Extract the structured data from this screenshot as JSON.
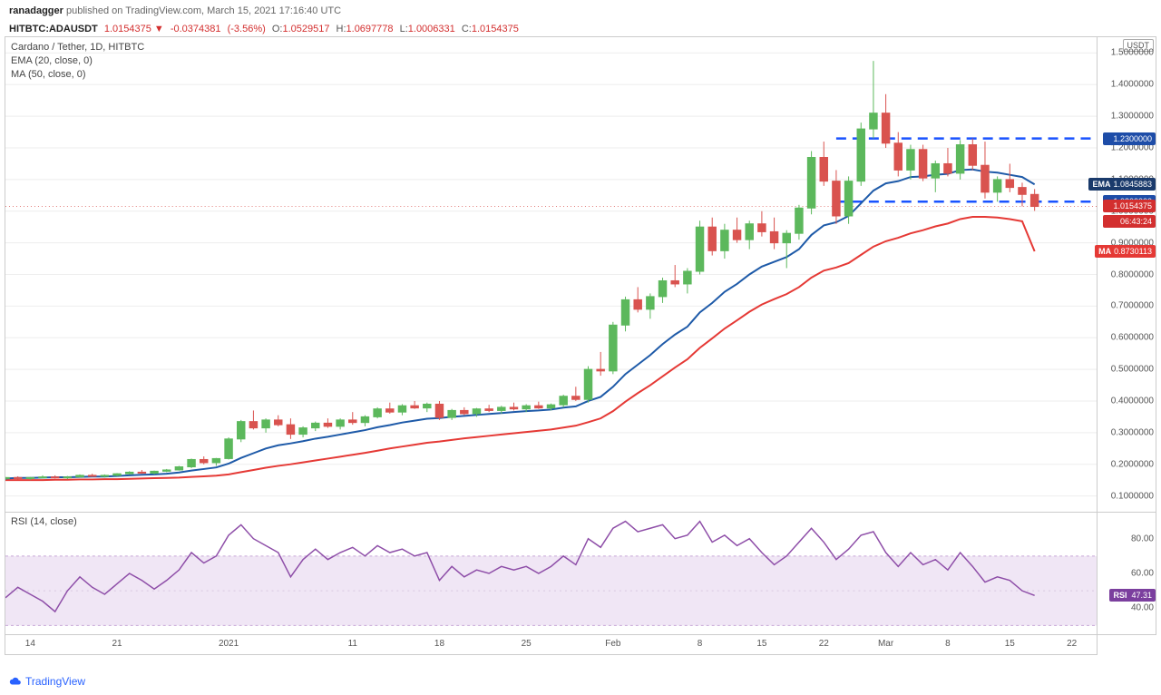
{
  "header": {
    "author": "ranadagger",
    "published_on": "published on TradingView.com,",
    "timestamp": "March 15, 2021 17:16:40 UTC"
  },
  "ticker": {
    "symbol": "HITBTC:ADAUSDT",
    "price": "1.0154375",
    "change": "-0.0374381",
    "change_pct": "(-3.56%)",
    "O_label": "O:",
    "O": "1.0529517",
    "H_label": "H:",
    "H": "1.0697778",
    "L_label": "L:",
    "L": "1.0006331",
    "C_label": "C:",
    "C": "1.0154375"
  },
  "legend": {
    "title": "Cardano / Tether, 1D, HITBTC",
    "ema": "EMA (20, close, 0)",
    "ma": "MA (50, close, 0)"
  },
  "price_chart": {
    "ymin": 0.05,
    "ymax": 1.55,
    "yticks": [
      0.1,
      0.2,
      0.3,
      0.4,
      0.5,
      0.6,
      0.7,
      0.8,
      0.9,
      1.0,
      1.1,
      1.2,
      1.3,
      1.4,
      1.5
    ],
    "ytick_labels": [
      "0.1000000",
      "0.2000000",
      "0.3000000",
      "0.4000000",
      "0.5000000",
      "0.6000000",
      "0.7000000",
      "0.8000000",
      "0.9000000",
      "1.0000000",
      "1.1000000",
      "1.2000000",
      "1.3000000",
      "1.4000000",
      "1.5000000"
    ],
    "currency_label": "USDT",
    "x_domain": [
      0,
      72
    ],
    "xticks": [
      {
        "x": 2,
        "label": "14"
      },
      {
        "x": 9,
        "label": "21"
      },
      {
        "x": 18,
        "label": "2021"
      },
      {
        "x": 28,
        "label": "11"
      },
      {
        "x": 35,
        "label": "18"
      },
      {
        "x": 42,
        "label": "25"
      },
      {
        "x": 49,
        "label": "Feb"
      },
      {
        "x": 56,
        "label": "8"
      },
      {
        "x": 61,
        "label": "15"
      },
      {
        "x": 66,
        "label": "22"
      },
      {
        "x": 71,
        "label": "Mar"
      },
      {
        "x": 76,
        "label": "8"
      },
      {
        "x": 81,
        "label": "15"
      },
      {
        "x": 86,
        "label": "22"
      }
    ],
    "xmax": 88,
    "candles": [
      {
        "o": 0.155,
        "h": 0.16,
        "l": 0.15,
        "c": 0.158
      },
      {
        "o": 0.158,
        "h": 0.162,
        "l": 0.152,
        "c": 0.155
      },
      {
        "o": 0.155,
        "h": 0.16,
        "l": 0.15,
        "c": 0.158
      },
      {
        "o": 0.158,
        "h": 0.165,
        "l": 0.155,
        "c": 0.16
      },
      {
        "o": 0.16,
        "h": 0.165,
        "l": 0.155,
        "c": 0.158
      },
      {
        "o": 0.158,
        "h": 0.163,
        "l": 0.153,
        "c": 0.16
      },
      {
        "o": 0.16,
        "h": 0.168,
        "l": 0.158,
        "c": 0.165
      },
      {
        "o": 0.165,
        "h": 0.17,
        "l": 0.16,
        "c": 0.162
      },
      {
        "o": 0.162,
        "h": 0.168,
        "l": 0.158,
        "c": 0.165
      },
      {
        "o": 0.165,
        "h": 0.172,
        "l": 0.162,
        "c": 0.17
      },
      {
        "o": 0.17,
        "h": 0.178,
        "l": 0.168,
        "c": 0.175
      },
      {
        "o": 0.175,
        "h": 0.182,
        "l": 0.17,
        "c": 0.172
      },
      {
        "o": 0.172,
        "h": 0.18,
        "l": 0.168,
        "c": 0.178
      },
      {
        "o": 0.178,
        "h": 0.185,
        "l": 0.175,
        "c": 0.182
      },
      {
        "o": 0.182,
        "h": 0.195,
        "l": 0.18,
        "c": 0.192
      },
      {
        "o": 0.192,
        "h": 0.218,
        "l": 0.188,
        "c": 0.215
      },
      {
        "o": 0.215,
        "h": 0.225,
        "l": 0.2,
        "c": 0.205
      },
      {
        "o": 0.205,
        "h": 0.22,
        "l": 0.195,
        "c": 0.218
      },
      {
        "o": 0.218,
        "h": 0.285,
        "l": 0.215,
        "c": 0.28
      },
      {
        "o": 0.28,
        "h": 0.34,
        "l": 0.27,
        "c": 0.335
      },
      {
        "o": 0.335,
        "h": 0.37,
        "l": 0.31,
        "c": 0.315
      },
      {
        "o": 0.315,
        "h": 0.345,
        "l": 0.3,
        "c": 0.34
      },
      {
        "o": 0.34,
        "h": 0.355,
        "l": 0.32,
        "c": 0.325
      },
      {
        "o": 0.325,
        "h": 0.345,
        "l": 0.28,
        "c": 0.295
      },
      {
        "o": 0.295,
        "h": 0.32,
        "l": 0.285,
        "c": 0.315
      },
      {
        "o": 0.315,
        "h": 0.335,
        "l": 0.305,
        "c": 0.33
      },
      {
        "o": 0.33,
        "h": 0.345,
        "l": 0.315,
        "c": 0.32
      },
      {
        "o": 0.32,
        "h": 0.345,
        "l": 0.31,
        "c": 0.34
      },
      {
        "o": 0.34,
        "h": 0.365,
        "l": 0.325,
        "c": 0.332
      },
      {
        "o": 0.332,
        "h": 0.355,
        "l": 0.32,
        "c": 0.35
      },
      {
        "o": 0.35,
        "h": 0.38,
        "l": 0.345,
        "c": 0.375
      },
      {
        "o": 0.375,
        "h": 0.395,
        "l": 0.36,
        "c": 0.365
      },
      {
        "o": 0.365,
        "h": 0.39,
        "l": 0.355,
        "c": 0.385
      },
      {
        "o": 0.385,
        "h": 0.4,
        "l": 0.375,
        "c": 0.378
      },
      {
        "o": 0.378,
        "h": 0.395,
        "l": 0.365,
        "c": 0.39
      },
      {
        "o": 0.39,
        "h": 0.4,
        "l": 0.34,
        "c": 0.348
      },
      {
        "o": 0.348,
        "h": 0.375,
        "l": 0.34,
        "c": 0.37
      },
      {
        "o": 0.37,
        "h": 0.38,
        "l": 0.355,
        "c": 0.36
      },
      {
        "o": 0.36,
        "h": 0.378,
        "l": 0.35,
        "c": 0.375
      },
      {
        "o": 0.375,
        "h": 0.388,
        "l": 0.365,
        "c": 0.37
      },
      {
        "o": 0.37,
        "h": 0.385,
        "l": 0.36,
        "c": 0.38
      },
      {
        "o": 0.38,
        "h": 0.395,
        "l": 0.37,
        "c": 0.375
      },
      {
        "o": 0.375,
        "h": 0.39,
        "l": 0.365,
        "c": 0.385
      },
      {
        "o": 0.385,
        "h": 0.398,
        "l": 0.375,
        "c": 0.378
      },
      {
        "o": 0.378,
        "h": 0.392,
        "l": 0.37,
        "c": 0.388
      },
      {
        "o": 0.388,
        "h": 0.42,
        "l": 0.38,
        "c": 0.415
      },
      {
        "o": 0.415,
        "h": 0.445,
        "l": 0.4,
        "c": 0.405
      },
      {
        "o": 0.405,
        "h": 0.51,
        "l": 0.395,
        "c": 0.5
      },
      {
        "o": 0.5,
        "h": 0.555,
        "l": 0.48,
        "c": 0.495
      },
      {
        "o": 0.495,
        "h": 0.65,
        "l": 0.485,
        "c": 0.64
      },
      {
        "o": 0.64,
        "h": 0.73,
        "l": 0.62,
        "c": 0.72
      },
      {
        "o": 0.72,
        "h": 0.76,
        "l": 0.68,
        "c": 0.69
      },
      {
        "o": 0.69,
        "h": 0.74,
        "l": 0.66,
        "c": 0.73
      },
      {
        "o": 0.73,
        "h": 0.79,
        "l": 0.71,
        "c": 0.78
      },
      {
        "o": 0.78,
        "h": 0.83,
        "l": 0.76,
        "c": 0.77
      },
      {
        "o": 0.77,
        "h": 0.82,
        "l": 0.74,
        "c": 0.81
      },
      {
        "o": 0.81,
        "h": 0.97,
        "l": 0.8,
        "c": 0.95
      },
      {
        "o": 0.95,
        "h": 0.98,
        "l": 0.86,
        "c": 0.875
      },
      {
        "o": 0.875,
        "h": 0.96,
        "l": 0.85,
        "c": 0.94
      },
      {
        "o": 0.94,
        "h": 0.98,
        "l": 0.9,
        "c": 0.91
      },
      {
        "o": 0.91,
        "h": 0.97,
        "l": 0.88,
        "c": 0.96
      },
      {
        "o": 0.96,
        "h": 1.0,
        "l": 0.92,
        "c": 0.935
      },
      {
        "o": 0.935,
        "h": 0.98,
        "l": 0.88,
        "c": 0.9
      },
      {
        "o": 0.9,
        "h": 0.94,
        "l": 0.82,
        "c": 0.93
      },
      {
        "o": 0.93,
        "h": 1.02,
        "l": 0.91,
        "c": 1.01
      },
      {
        "o": 1.01,
        "h": 1.19,
        "l": 0.99,
        "c": 1.17
      },
      {
        "o": 1.17,
        "h": 1.22,
        "l": 1.08,
        "c": 1.095
      },
      {
        "o": 1.095,
        "h": 1.13,
        "l": 0.96,
        "c": 0.985
      },
      {
        "o": 0.985,
        "h": 1.11,
        "l": 0.96,
        "c": 1.095
      },
      {
        "o": 1.095,
        "h": 1.28,
        "l": 1.08,
        "c": 1.26
      },
      {
        "o": 1.26,
        "h": 1.475,
        "l": 1.23,
        "c": 1.31
      },
      {
        "o": 1.31,
        "h": 1.37,
        "l": 1.2,
        "c": 1.215
      },
      {
        "o": 1.215,
        "h": 1.25,
        "l": 1.11,
        "c": 1.13
      },
      {
        "o": 1.13,
        "h": 1.21,
        "l": 1.1,
        "c": 1.195
      },
      {
        "o": 1.195,
        "h": 1.21,
        "l": 1.095,
        "c": 1.105
      },
      {
        "o": 1.105,
        "h": 1.16,
        "l": 1.06,
        "c": 1.15
      },
      {
        "o": 1.15,
        "h": 1.2,
        "l": 1.11,
        "c": 1.12
      },
      {
        "o": 1.12,
        "h": 1.225,
        "l": 1.1,
        "c": 1.21
      },
      {
        "o": 1.21,
        "h": 1.23,
        "l": 1.13,
        "c": 1.145
      },
      {
        "o": 1.145,
        "h": 1.22,
        "l": 1.04,
        "c": 1.06
      },
      {
        "o": 1.06,
        "h": 1.11,
        "l": 1.03,
        "c": 1.1
      },
      {
        "o": 1.1,
        "h": 1.15,
        "l": 1.06,
        "c": 1.075
      },
      {
        "o": 1.075,
        "h": 1.09,
        "l": 1.015,
        "c": 1.053
      },
      {
        "o": 1.053,
        "h": 1.07,
        "l": 1.001,
        "c": 1.015
      }
    ],
    "ema": [
      0.155,
      0.157,
      0.157,
      0.158,
      0.159,
      0.159,
      0.16,
      0.161,
      0.161,
      0.163,
      0.165,
      0.167,
      0.168,
      0.17,
      0.174,
      0.18,
      0.185,
      0.19,
      0.202,
      0.22,
      0.235,
      0.25,
      0.26,
      0.266,
      0.273,
      0.281,
      0.287,
      0.294,
      0.301,
      0.308,
      0.317,
      0.324,
      0.332,
      0.338,
      0.344,
      0.346,
      0.35,
      0.353,
      0.356,
      0.359,
      0.362,
      0.365,
      0.368,
      0.37,
      0.373,
      0.379,
      0.383,
      0.4,
      0.413,
      0.445,
      0.485,
      0.515,
      0.545,
      0.58,
      0.61,
      0.635,
      0.68,
      0.71,
      0.745,
      0.77,
      0.8,
      0.825,
      0.84,
      0.855,
      0.88,
      0.925,
      0.955,
      0.965,
      0.985,
      1.025,
      1.065,
      1.088,
      1.095,
      1.108,
      1.11,
      1.115,
      1.118,
      1.13,
      1.132,
      1.125,
      1.122,
      1.115,
      1.108,
      1.0846
    ],
    "ma": [
      0.15,
      0.15,
      0.15,
      0.15,
      0.151,
      0.151,
      0.152,
      0.152,
      0.153,
      0.153,
      0.154,
      0.155,
      0.156,
      0.157,
      0.158,
      0.16,
      0.162,
      0.164,
      0.168,
      0.175,
      0.182,
      0.189,
      0.195,
      0.2,
      0.206,
      0.212,
      0.218,
      0.224,
      0.23,
      0.236,
      0.243,
      0.25,
      0.256,
      0.262,
      0.268,
      0.272,
      0.277,
      0.282,
      0.286,
      0.29,
      0.294,
      0.298,
      0.302,
      0.306,
      0.31,
      0.316,
      0.322,
      0.333,
      0.345,
      0.368,
      0.398,
      0.425,
      0.45,
      0.478,
      0.506,
      0.532,
      0.568,
      0.598,
      0.629,
      0.655,
      0.682,
      0.705,
      0.722,
      0.738,
      0.76,
      0.79,
      0.812,
      0.822,
      0.836,
      0.862,
      0.888,
      0.905,
      0.916,
      0.93,
      0.94,
      0.952,
      0.961,
      0.975,
      0.982,
      0.982,
      0.98,
      0.975,
      0.968,
      0.873,
      0.873,
      0.873
    ],
    "ma_visible_end": 83,
    "support_level": 1.03,
    "resistance_level": 1.23,
    "support_label": "1.0300000",
    "resistance_label": "1.2300000",
    "ema_tag": "1.0845883",
    "last_price_tag": "1.0154375",
    "countdown_tag": "06:43:24",
    "ma_tag": "0.8730113",
    "ema_label": "EMA",
    "ma_label": "MA",
    "hline_color": "#1a53ff",
    "ema_color": "#1e5aa8",
    "ma_color": "#e53935",
    "up_color": "#5cb85c",
    "down_color": "#d9534f",
    "grid_color": "#eeeeee"
  },
  "rsi": {
    "legend": "RSI (14, close)",
    "ymin": 25,
    "ymax": 95,
    "ytick_labels": [
      "40.00",
      "60.00",
      "80.00"
    ],
    "yticks": [
      40,
      60,
      80
    ],
    "band_low": 30,
    "band_high": 70,
    "values": [
      46,
      52,
      48,
      44,
      38,
      50,
      58,
      52,
      48,
      54,
      60,
      56,
      51,
      56,
      62,
      72,
      66,
      70,
      82,
      88,
      80,
      76,
      72,
      58,
      68,
      74,
      68,
      72,
      75,
      70,
      76,
      72,
      74,
      70,
      72,
      56,
      64,
      58,
      62,
      60,
      64,
      62,
      64,
      60,
      64,
      70,
      65,
      80,
      75,
      86,
      90,
      84,
      86,
      88,
      80,
      82,
      90,
      78,
      82,
      76,
      80,
      72,
      65,
      70,
      78,
      86,
      78,
      68,
      74,
      82,
      84,
      72,
      64,
      72,
      65,
      68,
      62,
      72,
      64,
      55,
      58,
      56,
      50,
      47.31
    ],
    "tag": "47.31",
    "tag_label": "RSI",
    "line_color": "#8e4ea8",
    "band_color": "#f0e6f5"
  },
  "footer": {
    "brand": "TradingView"
  }
}
